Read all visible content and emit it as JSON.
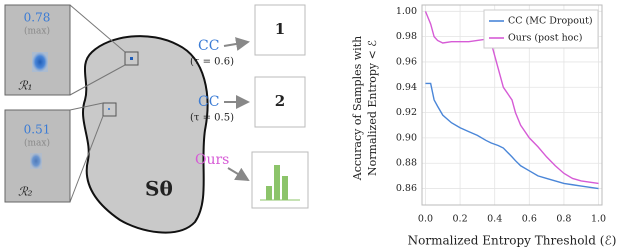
{
  "diagram": {
    "insets": [
      {
        "value": "0.78",
        "note": "(max)",
        "region": "ℛ₁"
      },
      {
        "value": "0.51",
        "note": "(max)",
        "region": "ℛ₂"
      }
    ],
    "shape_label": "Sθ",
    "methods": [
      {
        "name": "CC",
        "tau": "(τ = 0.6)",
        "output": "1"
      },
      {
        "name": "CC",
        "tau": "(τ = 0.5)",
        "output": "2"
      },
      {
        "name": "Ours"
      }
    ]
  },
  "chart_data": {
    "type": "line",
    "ylabel": [
      "Accuracy of Samples with",
      "Normalized Entropy < ℰ"
    ],
    "xlabel": "Normalized Entropy Threshold (ℰ)",
    "x": [
      0,
      0.03,
      0.05,
      0.07,
      0.1,
      0.15,
      0.2,
      0.25,
      0.3,
      0.35,
      0.38,
      0.4,
      0.42,
      0.45,
      0.5,
      0.52,
      0.55,
      0.6,
      0.65,
      0.7,
      0.75,
      0.8,
      0.85,
      0.9,
      1.0
    ],
    "series": [
      {
        "name": "CC (MC Dropout)",
        "color": "#4a86d8",
        "values": [
          0.943,
          0.943,
          0.93,
          0.925,
          0.918,
          0.912,
          0.908,
          0.905,
          0.902,
          0.898,
          0.896,
          0.895,
          0.894,
          0.892,
          0.885,
          0.882,
          0.878,
          0.874,
          0.87,
          0.868,
          0.866,
          0.864,
          0.863,
          0.862,
          0.86
        ]
      },
      {
        "name": "Ours (post hoc)",
        "color": "#d65bd6",
        "values": [
          1.0,
          0.99,
          0.98,
          0.977,
          0.975,
          0.976,
          0.976,
          0.976,
          0.977,
          0.978,
          0.975,
          0.965,
          0.955,
          0.94,
          0.93,
          0.92,
          0.91,
          0.9,
          0.893,
          0.885,
          0.878,
          0.872,
          0.868,
          0.866,
          0.864
        ]
      }
    ],
    "xlim": [
      -0.02,
      1.02
    ],
    "ylim": [
      0.847,
      1.005
    ],
    "xticks": [
      {
        "value": 0,
        "label": "0.0"
      },
      0.2,
      0.4,
      0.6,
      0.8,
      {
        "value": 1,
        "label": "1.0"
      }
    ],
    "yticks": [
      0.86,
      0.88,
      {
        "value": 0.9,
        "label": "0.90"
      },
      0.92,
      0.94,
      0.96,
      0.98,
      {
        "value": 1,
        "label": "1.00"
      }
    ],
    "grid": true,
    "legend": "upper right"
  }
}
